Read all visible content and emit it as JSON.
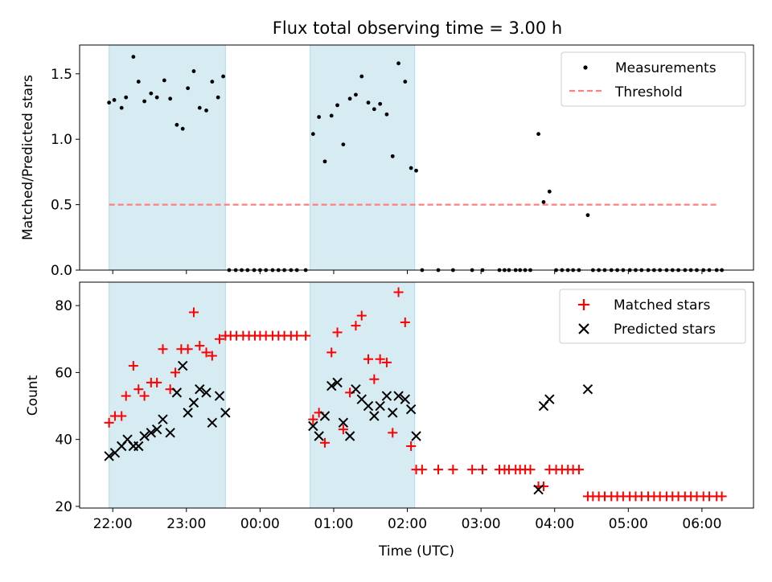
{
  "figure": {
    "title": "Flux total observing time = 3.00 h",
    "xlabel": "Time (UTC)"
  },
  "chart_data": [
    {
      "type": "scatter",
      "ylabel": "Matched/Predicted stars",
      "xlim": [
        21.55,
        30.7
      ],
      "ylim": [
        0,
        1.72
      ],
      "yticks": [
        0.0,
        0.5,
        1.0,
        1.5
      ],
      "ytick_labels": [
        "0.0",
        "0.5",
        "1.0",
        "1.5"
      ],
      "legend": "top-right",
      "shaded_intervals": [
        [
          21.95,
          23.53
        ],
        [
          24.68,
          26.1
        ]
      ],
      "threshold": {
        "name": "Threshold",
        "y": 0.5,
        "x": [
          21.95,
          30.2
        ],
        "color": "#ff7f7f"
      },
      "series": [
        {
          "name": "Measurements",
          "color": "#000000",
          "x": [
            21.95,
            22.02,
            22.12,
            22.18,
            22.28,
            22.35,
            22.43,
            22.52,
            22.6,
            22.7,
            22.78,
            22.87,
            22.95,
            23.02,
            23.1,
            23.18,
            23.27,
            23.35,
            23.43,
            23.5,
            24.72,
            24.8,
            24.88,
            24.97,
            25.05,
            25.13,
            25.22,
            25.3,
            25.38,
            25.47,
            25.55,
            25.63,
            25.72,
            25.8,
            25.88,
            25.97,
            26.05,
            26.12,
            23.58,
            23.67,
            23.75,
            23.83,
            23.92,
            24.0,
            24.08,
            24.17,
            24.25,
            24.33,
            24.42,
            24.5,
            24.62,
            26.2,
            26.42,
            26.62,
            26.88,
            27.02,
            27.25,
            27.32,
            27.38,
            27.47,
            27.53,
            27.6,
            27.67,
            27.78,
            27.85,
            27.93,
            28.02,
            28.1,
            28.18,
            28.25,
            28.33,
            28.45,
            28.52,
            28.6,
            28.68,
            28.77,
            28.85,
            28.93,
            29.02,
            29.1,
            29.18,
            29.27,
            29.35,
            29.43,
            29.52,
            29.6,
            29.68,
            29.77,
            29.85,
            29.93,
            30.02,
            30.1,
            30.2,
            30.27
          ],
          "y": [
            1.28,
            1.3,
            1.24,
            1.32,
            1.63,
            1.44,
            1.29,
            1.35,
            1.32,
            1.45,
            1.31,
            1.11,
            1.08,
            1.39,
            1.52,
            1.24,
            1.22,
            1.44,
            1.32,
            1.48,
            1.04,
            1.17,
            0.83,
            1.18,
            1.26,
            0.96,
            1.31,
            1.34,
            1.48,
            1.28,
            1.23,
            1.27,
            1.19,
            0.87,
            1.58,
            1.44,
            0.78,
            0.76,
            0,
            0,
            0,
            0,
            0,
            0,
            0,
            0,
            0,
            0,
            0,
            0,
            0,
            0,
            0,
            0,
            0,
            0,
            0,
            0,
            0,
            0,
            0,
            0,
            0,
            1.04,
            0.52,
            0.6,
            0,
            0,
            0,
            0,
            0,
            0.42,
            0,
            0,
            0,
            0,
            0,
            0,
            0,
            0,
            0,
            0,
            0,
            0,
            0,
            0,
            0,
            0,
            0,
            0,
            0,
            0,
            0,
            0
          ]
        }
      ]
    },
    {
      "type": "scatter",
      "ylabel": "Count",
      "xlim": [
        21.55,
        30.7
      ],
      "ylim": [
        19.5,
        87
      ],
      "yticks": [
        20,
        40,
        60,
        80
      ],
      "ytick_labels": [
        "20",
        "40",
        "60",
        "80"
      ],
      "xticks": [
        22,
        23,
        24,
        25,
        26,
        27,
        28,
        29,
        30
      ],
      "xtick_labels": [
        "22:00",
        "23:00",
        "00:00",
        "01:00",
        "02:00",
        "03:00",
        "04:00",
        "05:00",
        "06:00"
      ],
      "legend": "top-right",
      "shaded_intervals": [
        [
          21.95,
          23.53
        ],
        [
          24.68,
          26.1
        ]
      ],
      "series": [
        {
          "name": "Matched stars",
          "marker": "plus",
          "color": "#ff0000",
          "x": [
            21.95,
            22.03,
            22.12,
            22.18,
            22.28,
            22.35,
            22.43,
            22.52,
            22.6,
            22.68,
            22.78,
            22.85,
            22.93,
            23.02,
            23.1,
            23.18,
            23.27,
            23.35,
            23.45,
            23.53,
            23.6,
            23.68,
            23.77,
            23.85,
            23.93,
            24.0,
            24.08,
            24.17,
            24.25,
            24.33,
            24.42,
            24.5,
            24.62,
            24.72,
            24.8,
            24.88,
            24.97,
            25.05,
            25.13,
            25.22,
            25.3,
            25.38,
            25.47,
            25.55,
            25.63,
            25.72,
            25.8,
            25.88,
            25.97,
            26.05,
            26.12,
            26.2,
            26.42,
            26.62,
            26.88,
            27.02,
            27.25,
            27.32,
            27.38,
            27.47,
            27.53,
            27.6,
            27.67,
            27.78,
            27.85,
            27.93,
            28.02,
            28.1,
            28.18,
            28.25,
            28.33,
            28.45,
            28.52,
            28.6,
            28.68,
            28.77,
            28.85,
            28.93,
            29.02,
            29.1,
            29.18,
            29.27,
            29.35,
            29.43,
            29.52,
            29.6,
            29.68,
            29.77,
            29.85,
            29.93,
            30.02,
            30.1,
            30.2,
            30.27
          ],
          "y": [
            45,
            47,
            47,
            53,
            62,
            55,
            53,
            57,
            57,
            67,
            55,
            60,
            67,
            67,
            78,
            68,
            66,
            65,
            70,
            71,
            71,
            71,
            71,
            71,
            71,
            71,
            71,
            71,
            71,
            71,
            71,
            71,
            71,
            46,
            48,
            39,
            66,
            72,
            43,
            54,
            74,
            77,
            64,
            58,
            64,
            63,
            42,
            84,
            75,
            38,
            31,
            31,
            31,
            31,
            31,
            31,
            31,
            31,
            31,
            31,
            31,
            31,
            31,
            26,
            26,
            31,
            31,
            31,
            31,
            31,
            31,
            23,
            23,
            23,
            23,
            23,
            23,
            23,
            23,
            23,
            23,
            23,
            23,
            23,
            23,
            23,
            23,
            23,
            23,
            23,
            23,
            23,
            23,
            23
          ]
        },
        {
          "name": "Predicted stars",
          "marker": "x",
          "color": "#000000",
          "x": [
            21.95,
            22.03,
            22.12,
            22.2,
            22.28,
            22.35,
            22.43,
            22.52,
            22.6,
            22.68,
            22.78,
            22.87,
            22.95,
            23.02,
            23.1,
            23.18,
            23.27,
            23.35,
            23.45,
            23.53,
            24.72,
            24.8,
            24.88,
            24.97,
            25.05,
            25.13,
            25.22,
            25.3,
            25.38,
            25.47,
            25.55,
            25.63,
            25.72,
            25.8,
            25.88,
            25.97,
            26.05,
            26.12,
            27.78,
            27.85,
            27.93,
            28.45
          ],
          "y": [
            35,
            36,
            38,
            40,
            38,
            38,
            41,
            42,
            43,
            46,
            42,
            54,
            62,
            48,
            51,
            55,
            54,
            45,
            53,
            48,
            44,
            41,
            47,
            56,
            57,
            45,
            41,
            55,
            52,
            50,
            47,
            50,
            53,
            48,
            53,
            52,
            49,
            41,
            25,
            50,
            52,
            55
          ]
        }
      ]
    }
  ]
}
